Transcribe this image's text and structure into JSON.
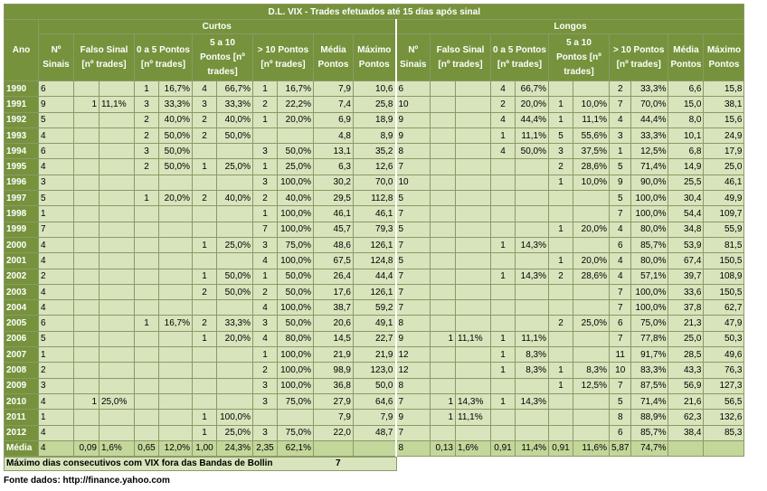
{
  "title": "D.L. VIX - Trades efetuados até 15 dias após sinal",
  "groups": {
    "curtos": "Curtos",
    "longos": "Longos"
  },
  "headers": {
    "ano": "Ano",
    "n_sinais": "Nº Sinais",
    "falso_sinal": "Falso Sinal [nº trades]",
    "p0_5": "0 a 5 Pontos [nº trades]",
    "p5_10": "5 a 10 Pontos [nº trades]",
    "p10": "> 10 Pontos [nº trades]",
    "media": "Média Pontos",
    "maximo": "Máximo Pontos"
  },
  "rows": [
    {
      "ano": "1990",
      "curtos": [
        "6",
        "",
        "",
        "1",
        "16,7%",
        "4",
        "66,7%",
        "1",
        "16,7%",
        "7,9",
        "10,6"
      ],
      "longos": [
        "6",
        "",
        "",
        "4",
        "66,7%",
        "",
        "",
        "2",
        "33,3%",
        "6,6",
        "15,8"
      ]
    },
    {
      "ano": "1991",
      "curtos": [
        "9",
        "1",
        "11,1%",
        "3",
        "33,3%",
        "3",
        "33,3%",
        "2",
        "22,2%",
        "7,4",
        "25,8"
      ],
      "longos": [
        "10",
        "",
        "",
        "2",
        "20,0%",
        "1",
        "10,0%",
        "7",
        "70,0%",
        "15,0",
        "38,1"
      ]
    },
    {
      "ano": "1992",
      "curtos": [
        "5",
        "",
        "",
        "2",
        "40,0%",
        "2",
        "40,0%",
        "1",
        "20,0%",
        "6,9",
        "18,9"
      ],
      "longos": [
        "9",
        "",
        "",
        "4",
        "44,4%",
        "1",
        "11,1%",
        "4",
        "44,4%",
        "8,0",
        "15,6"
      ]
    },
    {
      "ano": "1993",
      "curtos": [
        "4",
        "",
        "",
        "2",
        "50,0%",
        "2",
        "50,0%",
        "",
        "",
        "4,8",
        "8,9"
      ],
      "longos": [
        "9",
        "",
        "",
        "1",
        "11,1%",
        "5",
        "55,6%",
        "3",
        "33,3%",
        "10,1",
        "24,9"
      ]
    },
    {
      "ano": "1994",
      "curtos": [
        "6",
        "",
        "",
        "3",
        "50,0%",
        "",
        "",
        "3",
        "50,0%",
        "13,1",
        "35,2"
      ],
      "longos": [
        "8",
        "",
        "",
        "4",
        "50,0%",
        "3",
        "37,5%",
        "1",
        "12,5%",
        "6,8",
        "17,9"
      ]
    },
    {
      "ano": "1995",
      "curtos": [
        "4",
        "",
        "",
        "2",
        "50,0%",
        "1",
        "25,0%",
        "1",
        "25,0%",
        "6,3",
        "12,6"
      ],
      "longos": [
        "7",
        "",
        "",
        "",
        "",
        "2",
        "28,6%",
        "5",
        "71,4%",
        "14,9",
        "25,0"
      ]
    },
    {
      "ano": "1996",
      "curtos": [
        "3",
        "",
        "",
        "",
        "",
        "",
        "",
        "3",
        "100,0%",
        "30,2",
        "70,0"
      ],
      "longos": [
        "10",
        "",
        "",
        "",
        "",
        "1",
        "10,0%",
        "9",
        "90,0%",
        "25,5",
        "46,1"
      ]
    },
    {
      "ano": "1997",
      "curtos": [
        "5",
        "",
        "",
        "1",
        "20,0%",
        "2",
        "40,0%",
        "2",
        "40,0%",
        "29,5",
        "112,8"
      ],
      "longos": [
        "5",
        "",
        "",
        "",
        "",
        "",
        "",
        "5",
        "100,0%",
        "30,4",
        "49,9"
      ]
    },
    {
      "ano": "1998",
      "curtos": [
        "1",
        "",
        "",
        "",
        "",
        "",
        "",
        "1",
        "100,0%",
        "46,1",
        "46,1"
      ],
      "longos": [
        "7",
        "",
        "",
        "",
        "",
        "",
        "",
        "7",
        "100,0%",
        "54,4",
        "109,7"
      ]
    },
    {
      "ano": "1999",
      "curtos": [
        "7",
        "",
        "",
        "",
        "",
        "",
        "",
        "7",
        "100,0%",
        "45,7",
        "79,3"
      ],
      "longos": [
        "5",
        "",
        "",
        "",
        "",
        "1",
        "20,0%",
        "4",
        "80,0%",
        "34,8",
        "55,9"
      ]
    },
    {
      "ano": "2000",
      "curtos": [
        "4",
        "",
        "",
        "",
        "",
        "1",
        "25,0%",
        "3",
        "75,0%",
        "48,6",
        "126,1"
      ],
      "longos": [
        "7",
        "",
        "",
        "1",
        "14,3%",
        "",
        "",
        "6",
        "85,7%",
        "53,9",
        "81,5"
      ]
    },
    {
      "ano": "2001",
      "curtos": [
        "4",
        "",
        "",
        "",
        "",
        "",
        "",
        "4",
        "100,0%",
        "67,5",
        "124,8"
      ],
      "longos": [
        "5",
        "",
        "",
        "",
        "",
        "1",
        "20,0%",
        "4",
        "80,0%",
        "67,4",
        "150,5"
      ]
    },
    {
      "ano": "2002",
      "curtos": [
        "2",
        "",
        "",
        "",
        "",
        "1",
        "50,0%",
        "1",
        "50,0%",
        "26,4",
        "44,4"
      ],
      "longos": [
        "7",
        "",
        "",
        "1",
        "14,3%",
        "2",
        "28,6%",
        "4",
        "57,1%",
        "39,7",
        "108,9"
      ]
    },
    {
      "ano": "2003",
      "curtos": [
        "4",
        "",
        "",
        "",
        "",
        "2",
        "50,0%",
        "2",
        "50,0%",
        "17,6",
        "126,1"
      ],
      "longos": [
        "7",
        "",
        "",
        "",
        "",
        "",
        "",
        "7",
        "100,0%",
        "33,6",
        "150,5"
      ]
    },
    {
      "ano": "2004",
      "curtos": [
        "4",
        "",
        "",
        "",
        "",
        "",
        "",
        "4",
        "100,0%",
        "38,7",
        "59,2"
      ],
      "longos": [
        "7",
        "",
        "",
        "",
        "",
        "",
        "",
        "7",
        "100,0%",
        "37,8",
        "62,7"
      ]
    },
    {
      "ano": "2005",
      "curtos": [
        "6",
        "",
        "",
        "1",
        "16,7%",
        "2",
        "33,3%",
        "3",
        "50,0%",
        "20,6",
        "49,1"
      ],
      "longos": [
        "8",
        "",
        "",
        "",
        "",
        "2",
        "25,0%",
        "6",
        "75,0%",
        "21,3",
        "47,9"
      ]
    },
    {
      "ano": "2006",
      "curtos": [
        "5",
        "",
        "",
        "",
        "",
        "1",
        "20,0%",
        "4",
        "80,0%",
        "14,5",
        "22,7"
      ],
      "longos": [
        "9",
        "1",
        "11,1%",
        "1",
        "11,1%",
        "",
        "",
        "7",
        "77,8%",
        "25,0",
        "50,3"
      ]
    },
    {
      "ano": "2007",
      "curtos": [
        "1",
        "",
        "",
        "",
        "",
        "",
        "",
        "1",
        "100,0%",
        "21,9",
        "21,9"
      ],
      "longos": [
        "12",
        "",
        "",
        "1",
        "8,3%",
        "",
        "",
        "11",
        "91,7%",
        "28,5",
        "49,6"
      ]
    },
    {
      "ano": "2008",
      "curtos": [
        "2",
        "",
        "",
        "",
        "",
        "",
        "",
        "2",
        "100,0%",
        "98,9",
        "123,0"
      ],
      "longos": [
        "12",
        "",
        "",
        "1",
        "8,3%",
        "1",
        "8,3%",
        "10",
        "83,3%",
        "43,3",
        "76,3"
      ]
    },
    {
      "ano": "2009",
      "curtos": [
        "3",
        "",
        "",
        "",
        "",
        "",
        "",
        "3",
        "100,0%",
        "36,8",
        "50,0"
      ],
      "longos": [
        "8",
        "",
        "",
        "",
        "",
        "1",
        "12,5%",
        "7",
        "87,5%",
        "56,9",
        "127,3"
      ]
    },
    {
      "ano": "2010",
      "curtos": [
        "4",
        "1",
        "25,0%",
        "",
        "",
        "",
        "",
        "3",
        "75,0%",
        "27,9",
        "64,6"
      ],
      "longos": [
        "7",
        "1",
        "14,3%",
        "1",
        "14,3%",
        "",
        "",
        "5",
        "71,4%",
        "21,6",
        "56,5"
      ]
    },
    {
      "ano": "2011",
      "curtos": [
        "1",
        "",
        "",
        "",
        "",
        "1",
        "100,0%",
        "",
        "",
        "7,9",
        "7,9"
      ],
      "longos": [
        "9",
        "1",
        "11,1%",
        "",
        "",
        "",
        "",
        "8",
        "88,9%",
        "62,3",
        "132,6"
      ]
    },
    {
      "ano": "2012",
      "curtos": [
        "4",
        "",
        "",
        "",
        "",
        "1",
        "25,0%",
        "3",
        "75,0%",
        "22,0",
        "48,7"
      ],
      "longos": [
        "7",
        "",
        "",
        "",
        "",
        "",
        "",
        "6",
        "85,7%",
        "38,4",
        "85,3"
      ]
    }
  ],
  "media": {
    "label": "Média",
    "curtos": [
      "4",
      "0,09",
      "1,6%",
      "0,65",
      "12,0%",
      "1,00",
      "24,3%",
      "2,35",
      "62,1%",
      "",
      ""
    ],
    "longos": [
      "8",
      "0,13",
      "1,6%",
      "0,91",
      "11,4%",
      "0,91",
      "11,6%",
      "5,87",
      "74,7%",
      "",
      ""
    ]
  },
  "footer": {
    "label": "Máximo dias consecutivos com VIX fora das Bandas de Bollin",
    "value": "7",
    "source": "Fonte dados: http://finance.yahoo.com"
  }
}
